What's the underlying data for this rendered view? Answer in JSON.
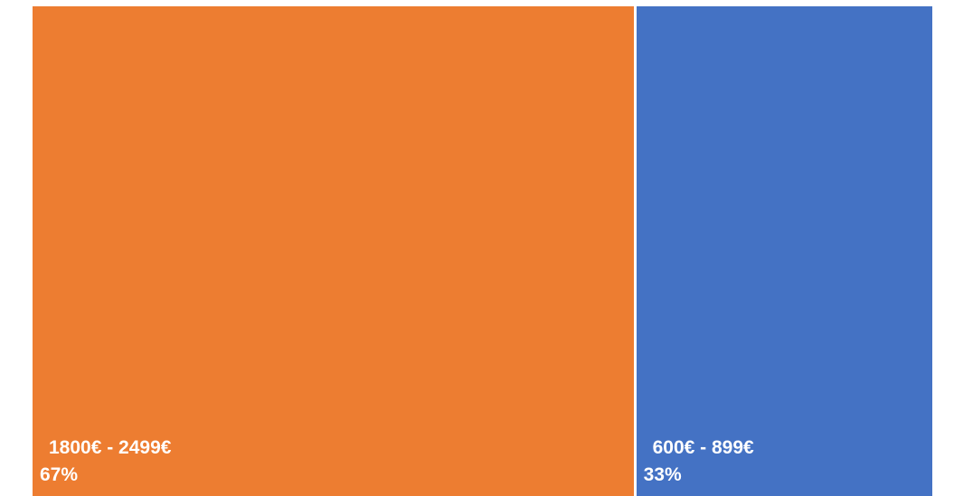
{
  "chart_data": {
    "type": "treemap",
    "items": [
      {
        "label": "1800€ - 2499€",
        "value": 67,
        "value_label": "67%",
        "color": "#ED7D31"
      },
      {
        "label": "600€ - 899€",
        "value": 33,
        "value_label": "33%",
        "color": "#4472C4"
      }
    ],
    "unit": "%"
  }
}
